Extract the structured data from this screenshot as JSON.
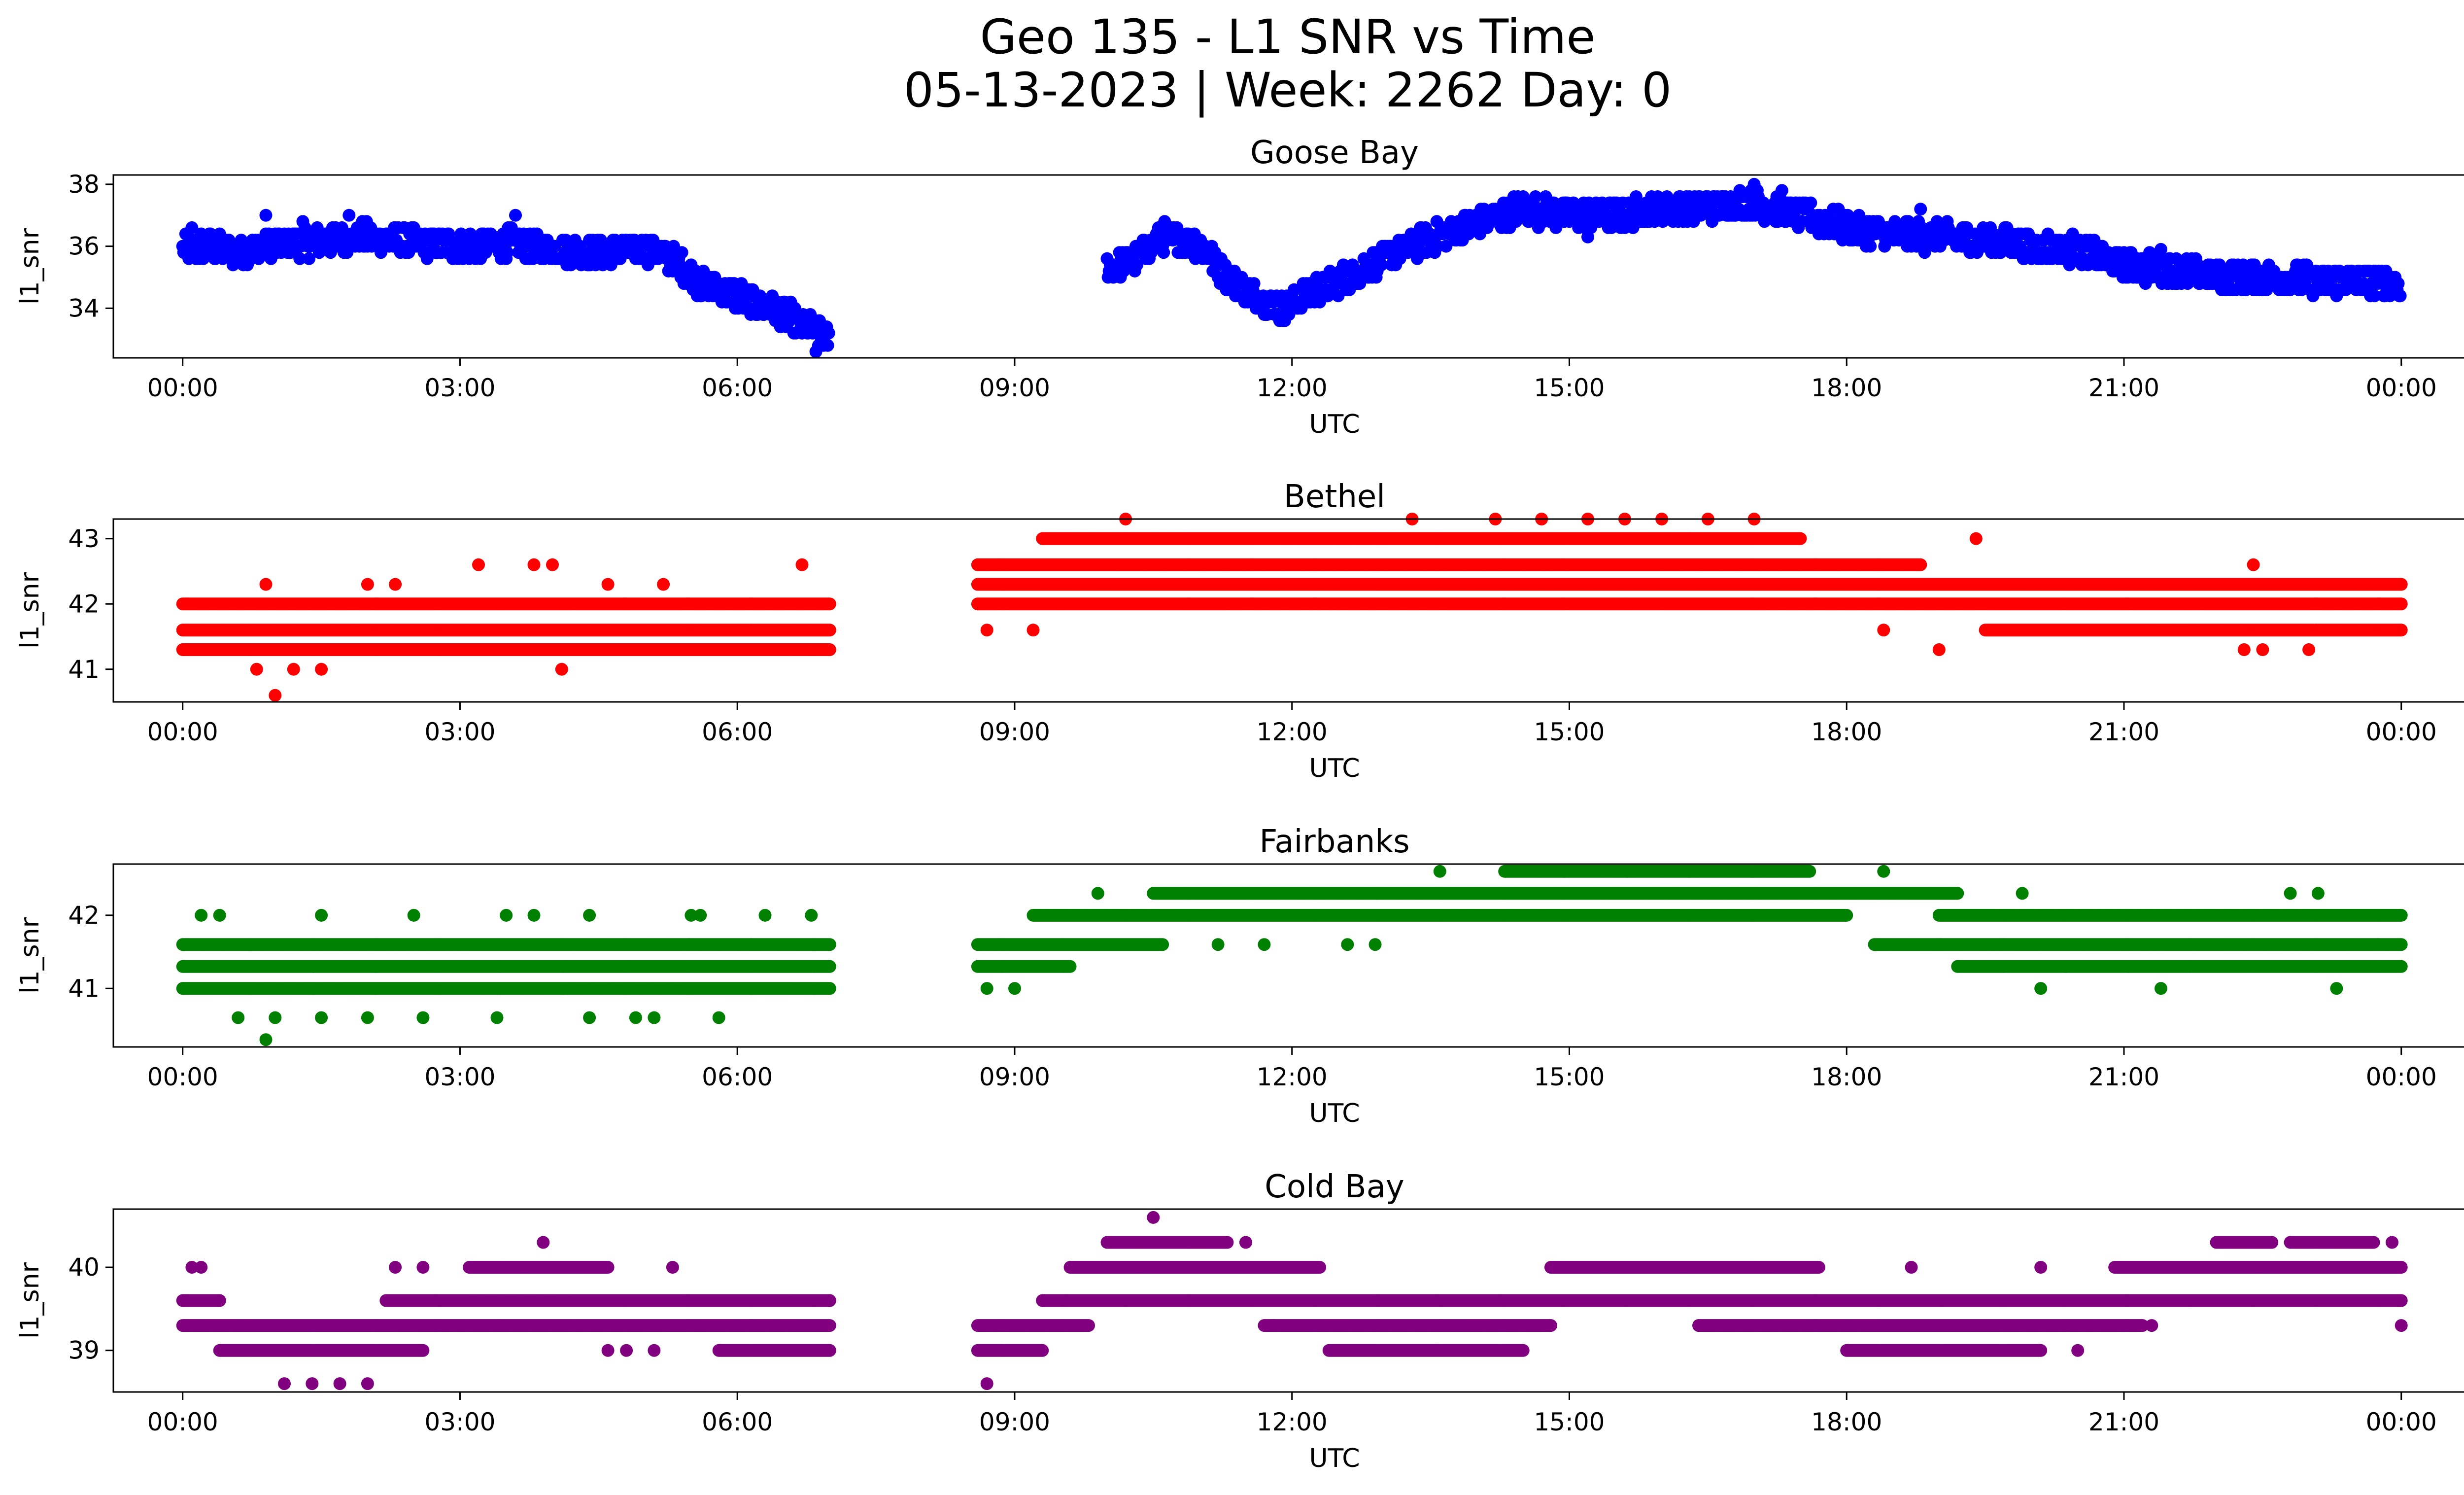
{
  "figure": {
    "title_line1": "Geo 135 - L1 SNR vs Time",
    "title_line2": "05-13-2023 | Week: 2262 Day: 0"
  },
  "chart_data": [
    {
      "type": "scatter",
      "title": "Goose Bay",
      "xlabel": "UTC",
      "ylabel": "l1_snr",
      "color": "#0000ff",
      "xticks": [
        "00:00",
        "03:00",
        "06:00",
        "09:00",
        "12:00",
        "15:00",
        "18:00",
        "21:00",
        "00:00"
      ],
      "xlim_hours": [
        -0.75,
        25.67
      ],
      "yticks": [
        34,
        36,
        38
      ],
      "ylim": [
        32.4,
        38.3
      ],
      "trend": [
        [
          0,
          35.9
        ],
        [
          0.3,
          36.0
        ],
        [
          0.6,
          35.8
        ],
        [
          0.9,
          36.0
        ],
        [
          1.2,
          36.1
        ],
        [
          1.6,
          36.2
        ],
        [
          2.0,
          36.3
        ],
        [
          2.5,
          36.1
        ],
        [
          3.0,
          36.0
        ],
        [
          3.5,
          36.1
        ],
        [
          4.0,
          35.9
        ],
        [
          4.5,
          35.8
        ],
        [
          5.0,
          35.9
        ],
        [
          5.3,
          35.6
        ],
        [
          5.6,
          34.8
        ],
        [
          5.9,
          34.5
        ],
        [
          6.2,
          34.2
        ],
        [
          6.5,
          33.8
        ],
        [
          6.8,
          33.3
        ],
        [
          7.0,
          33.0
        ],
        [
          10.0,
          35.3
        ],
        [
          10.3,
          35.6
        ],
        [
          10.6,
          36.3
        ],
        [
          11.0,
          36.1
        ],
        [
          11.3,
          35.0
        ],
        [
          11.6,
          34.4
        ],
        [
          11.9,
          34.0
        ],
        [
          12.2,
          34.5
        ],
        [
          12.6,
          35.0
        ],
        [
          12.9,
          35.5
        ],
        [
          13.3,
          36.0
        ],
        [
          13.7,
          36.5
        ],
        [
          14.1,
          36.8
        ],
        [
          14.5,
          37.2
        ],
        [
          15.0,
          37.0
        ],
        [
          15.5,
          37.0
        ],
        [
          16.0,
          37.2
        ],
        [
          16.5,
          37.3
        ],
        [
          17.0,
          37.4
        ],
        [
          17.5,
          37.0
        ],
        [
          18.0,
          36.6
        ],
        [
          18.5,
          36.4
        ],
        [
          19.0,
          36.3
        ],
        [
          19.5,
          36.2
        ],
        [
          20.0,
          36.0
        ],
        [
          20.5,
          35.9
        ],
        [
          21.0,
          35.4
        ],
        [
          21.5,
          35.2
        ],
        [
          22.0,
          35.0
        ],
        [
          22.5,
          35.0
        ],
        [
          23.0,
          34.9
        ],
        [
          23.5,
          34.9
        ],
        [
          24.0,
          34.8
        ]
      ],
      "spread": 0.45,
      "sparse_points": [
        [
          0.1,
          36.6
        ],
        [
          0.9,
          37.0
        ],
        [
          1.3,
          36.8
        ],
        [
          1.8,
          37.0
        ],
        [
          3.6,
          37.0
        ],
        [
          6.85,
          32.6
        ],
        [
          6.7,
          33.2
        ],
        [
          11.9,
          33.6
        ],
        [
          14.4,
          37.6
        ],
        [
          17.0,
          38.0
        ],
        [
          17.3,
          37.8
        ],
        [
          18.8,
          37.2
        ],
        [
          21.4,
          35.9
        ],
        [
          15.2,
          36.3
        ],
        [
          5.55,
          35.2
        ]
      ]
    },
    {
      "type": "scatter",
      "title": "Bethel",
      "xlabel": "UTC",
      "ylabel": "l1_snr",
      "color": "#ff0000",
      "xticks": [
        "00:00",
        "03:00",
        "06:00",
        "09:00",
        "12:00",
        "15:00",
        "18:00",
        "21:00",
        "00:00"
      ],
      "xlim_hours": [
        -0.75,
        25.67
      ],
      "yticks": [
        41,
        42,
        43
      ],
      "ylim": [
        40.5,
        43.3
      ],
      "levels": [
        {
          "y": 41.3,
          "segments": [
            [
              0,
              7
            ]
          ]
        },
        {
          "y": 41.6,
          "segments": [
            [
              0,
              7
            ],
            [
              19.5,
              24
            ]
          ]
        },
        {
          "y": 42.0,
          "segments": [
            [
              0,
              7
            ],
            [
              8.6,
              24
            ]
          ]
        },
        {
          "y": 42.3,
          "segments": [
            [
              8.6,
              24
            ]
          ]
        },
        {
          "y": 42.6,
          "segments": [
            [
              8.6,
              18.8
            ]
          ]
        },
        {
          "y": 43.0,
          "segments": [
            [
              9.3,
              17.5
            ]
          ]
        }
      ],
      "sparse_points": [
        [
          0.9,
          42.3
        ],
        [
          1.0,
          40.6
        ],
        [
          0.8,
          41.0
        ],
        [
          1.2,
          41.0
        ],
        [
          1.5,
          41.0
        ],
        [
          2.0,
          42.3
        ],
        [
          2.3,
          42.3
        ],
        [
          3.2,
          42.6
        ],
        [
          3.8,
          42.6
        ],
        [
          4.0,
          42.6
        ],
        [
          4.1,
          41.0
        ],
        [
          4.6,
          42.3
        ],
        [
          5.2,
          42.3
        ],
        [
          6.7,
          42.6
        ],
        [
          6.8,
          41.3
        ],
        [
          10.2,
          43.3
        ],
        [
          13.3,
          43.3
        ],
        [
          14.2,
          43.3
        ],
        [
          14.7,
          43.3
        ],
        [
          15.2,
          43.3
        ],
        [
          15.6,
          43.3
        ],
        [
          16.0,
          43.3
        ],
        [
          16.5,
          43.3
        ],
        [
          17.0,
          43.3
        ],
        [
          19.4,
          43.0
        ],
        [
          18.4,
          41.6
        ],
        [
          19.0,
          41.3
        ],
        [
          22.4,
          42.6
        ],
        [
          22.3,
          41.3
        ],
        [
          22.5,
          41.3
        ],
        [
          23.0,
          41.3
        ],
        [
          8.7,
          41.6
        ],
        [
          9.2,
          41.6
        ]
      ]
    },
    {
      "type": "scatter",
      "title": "Fairbanks",
      "xlabel": "UTC",
      "ylabel": "l1_snr",
      "color": "#008000",
      "xticks": [
        "00:00",
        "03:00",
        "06:00",
        "09:00",
        "12:00",
        "15:00",
        "18:00",
        "21:00",
        "00:00"
      ],
      "xlim_hours": [
        -0.75,
        25.67
      ],
      "yticks": [
        41,
        42
      ],
      "ylim": [
        40.2,
        42.7
      ],
      "levels": [
        {
          "y": 41.0,
          "segments": [
            [
              0,
              7
            ]
          ]
        },
        {
          "y": 41.3,
          "segments": [
            [
              0,
              7
            ],
            [
              8.6,
              9.6
            ],
            [
              19.2,
              24
            ]
          ]
        },
        {
          "y": 41.6,
          "segments": [
            [
              0,
              7
            ],
            [
              8.6,
              10.6
            ],
            [
              18.3,
              24
            ]
          ]
        },
        {
          "y": 42.0,
          "segments": [
            [
              9.2,
              18.0
            ],
            [
              19.0,
              24
            ]
          ]
        },
        {
          "y": 42.3,
          "segments": [
            [
              10.5,
              19.2
            ]
          ]
        },
        {
          "y": 42.6,
          "segments": [
            [
              14.3,
              17.6
            ]
          ]
        }
      ],
      "sparse_points": [
        [
          0.2,
          42.0
        ],
        [
          0.4,
          42.0
        ],
        [
          1.5,
          42.0
        ],
        [
          2.5,
          42.0
        ],
        [
          3.5,
          42.0
        ],
        [
          3.8,
          42.0
        ],
        [
          4.4,
          42.0
        ],
        [
          5.5,
          42.0
        ],
        [
          5.6,
          42.0
        ],
        [
          6.3,
          42.0
        ],
        [
          6.8,
          42.0
        ],
        [
          0.9,
          40.3
        ],
        [
          0.6,
          40.6
        ],
        [
          1.0,
          40.6
        ],
        [
          1.5,
          40.6
        ],
        [
          2.0,
          40.6
        ],
        [
          2.6,
          40.6
        ],
        [
          3.4,
          40.6
        ],
        [
          4.4,
          40.6
        ],
        [
          4.9,
          40.6
        ],
        [
          5.1,
          40.6
        ],
        [
          5.8,
          40.6
        ],
        [
          8.7,
          41.0
        ],
        [
          9.0,
          41.0
        ],
        [
          9.9,
          42.3
        ],
        [
          11.2,
          41.6
        ],
        [
          11.7,
          41.6
        ],
        [
          12.6,
          41.6
        ],
        [
          12.9,
          41.6
        ],
        [
          13.6,
          42.6
        ],
        [
          18.4,
          42.6
        ],
        [
          20.1,
          41.0
        ],
        [
          21.4,
          41.0
        ],
        [
          23.3,
          41.0
        ],
        [
          22.8,
          42.3
        ],
        [
          23.1,
          42.3
        ],
        [
          19.9,
          42.3
        ]
      ]
    },
    {
      "type": "scatter",
      "title": "Cold Bay",
      "xlabel": "UTC",
      "ylabel": "l1_snr",
      "color": "#800080",
      "xticks": [
        "00:00",
        "03:00",
        "06:00",
        "09:00",
        "12:00",
        "15:00",
        "18:00",
        "21:00",
        "00:00"
      ],
      "xlim_hours": [
        -0.75,
        25.67
      ],
      "yticks": [
        39,
        40
      ],
      "ylim": [
        38.5,
        40.7
      ],
      "levels": [
        {
          "y": 39.0,
          "segments": [
            [
              0.4,
              2.6
            ],
            [
              5.8,
              7
            ],
            [
              8.6,
              9.3
            ],
            [
              12.4,
              14.5
            ],
            [
              18.0,
              20.1
            ]
          ]
        },
        {
          "y": 39.3,
          "segments": [
            [
              0,
              7
            ],
            [
              8.6,
              9.8
            ],
            [
              11.7,
              14.8
            ],
            [
              16.4,
              21.2
            ]
          ]
        },
        {
          "y": 39.6,
          "segments": [
            [
              0,
              0.4
            ],
            [
              2.2,
              7
            ],
            [
              9.3,
              24
            ]
          ]
        },
        {
          "y": 40.0,
          "segments": [
            [
              3.1,
              4.6
            ],
            [
              9.6,
              12.3
            ],
            [
              14.8,
              17.7
            ],
            [
              20.9,
              24
            ]
          ]
        },
        {
          "y": 40.3,
          "segments": [
            [
              10.0,
              11.3
            ],
            [
              22.0,
              22.6
            ],
            [
              22.8,
              23.7
            ]
          ]
        }
      ],
      "sparse_points": [
        [
          0.1,
          40.0
        ],
        [
          0.2,
          40.0
        ],
        [
          1.1,
          38.6
        ],
        [
          1.4,
          38.6
        ],
        [
          1.7,
          38.6
        ],
        [
          2.0,
          38.6
        ],
        [
          2.3,
          40.0
        ],
        [
          2.6,
          40.0
        ],
        [
          3.9,
          40.3
        ],
        [
          4.6,
          39.0
        ],
        [
          4.8,
          39.0
        ],
        [
          5.3,
          40.0
        ],
        [
          5.1,
          39.0
        ],
        [
          8.7,
          38.6
        ],
        [
          10.5,
          40.6
        ],
        [
          11.5,
          40.3
        ],
        [
          18.7,
          40.0
        ],
        [
          20.1,
          40.0
        ],
        [
          20.5,
          39.0
        ],
        [
          21.3,
          39.3
        ],
        [
          23.9,
          40.3
        ],
        [
          24.0,
          39.3
        ],
        [
          16.4,
          39.3
        ],
        [
          11.8,
          39.3
        ]
      ]
    }
  ]
}
